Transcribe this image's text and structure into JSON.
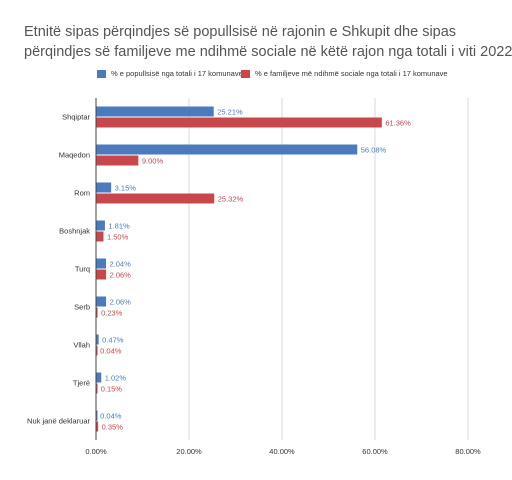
{
  "title": {
    "line1": "Etnitë sipas përqindjes së popullsisë në rajonin e Shkupit dhe sipas",
    "line2": "përqindjes së familjeve me ndihmë sociale në këtë rajon nga totali i viti 2022"
  },
  "colors": {
    "series1": "#4a7bbf",
    "series2": "#c8474b",
    "grid": "#d9d9d9",
    "axisText": "#333333"
  },
  "chart_data": {
    "type": "bar",
    "orientation": "horizontal",
    "title": "Etnitë sipas përqindjes së popullsisë në rajonin e Shkupit dhe sipas përqindjes së familjeve me ndihmë sociale në këtë rajon nga totali i viti 2022",
    "categories": [
      "Shqiptar",
      "Maqedon",
      "Rom",
      "Boshnjak",
      "Turq",
      "Serb",
      "Vllah",
      "Tjerë",
      "Nuk janë deklaruar"
    ],
    "series": [
      {
        "name": "% e popullsisë nga totali i 17 komunave",
        "values": [
          25.21,
          56.08,
          3.15,
          1.81,
          2.04,
          2.06,
          0.47,
          1.02,
          0.04
        ],
        "labels": [
          "25.21%",
          "56.08%",
          "3.15%",
          "1.81%",
          "2.04%",
          "2.06%",
          "0.47%",
          "1.02%",
          "0.04%"
        ]
      },
      {
        "name": "% e familjeve më ndihmë sociale nga totali i 17 komunave",
        "values": [
          61.36,
          9.0,
          25.32,
          1.5,
          2.06,
          0.23,
          0.04,
          0.15,
          0.35
        ],
        "labels": [
          "61.36%",
          "9.00%",
          "25.32%",
          "1.50%",
          "2.06%",
          "0.23%",
          "0.04%",
          "0.15%",
          "0.35%"
        ]
      }
    ],
    "xlim": [
      0,
      80
    ],
    "xticks": [
      0,
      20,
      40,
      60,
      80
    ],
    "xtick_labels": [
      "0.00%",
      "20.00%",
      "40.00%",
      "60.00%",
      "80.00%"
    ],
    "grid": true,
    "legend": "top"
  }
}
